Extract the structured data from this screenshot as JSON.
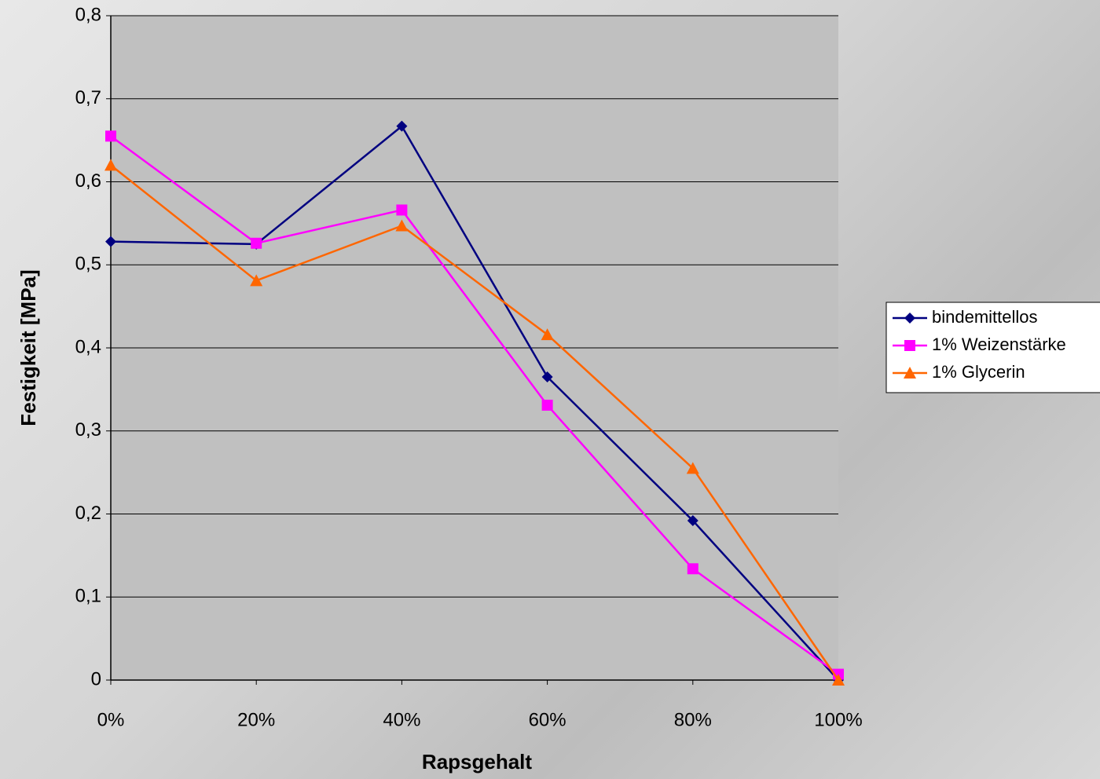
{
  "chart_data": {
    "type": "line",
    "x_label": "Rapsgehalt",
    "y_label": "Festigkeit [MPa]",
    "categories": [
      "0%",
      "20%",
      "40%",
      "60%",
      "80%",
      "100%"
    ],
    "series": [
      {
        "name": "bindemittellos",
        "color": "#000080",
        "marker": "diamond",
        "values": [
          0.528,
          0.525,
          0.667,
          0.365,
          0.192,
          0
        ]
      },
      {
        "name": "1% Weizenstärke",
        "color": "#ff00ff",
        "marker": "square",
        "values": [
          0.655,
          0.526,
          0.566,
          0.331,
          0.134,
          0.007
        ]
      },
      {
        "name": "1% Glycerin",
        "color": "#ff6600",
        "marker": "triangle",
        "values": [
          0.62,
          0.481,
          0.547,
          0.416,
          0.255,
          0
        ]
      }
    ],
    "ylim": [
      0,
      0.8
    ],
    "yticks": [
      0,
      {
        "value": 0.1,
        "label": "0,1"
      },
      {
        "value": 0.2,
        "label": "0,2"
      },
      {
        "value": 0.3,
        "label": "0,3"
      },
      {
        "value": 0.4,
        "label": "0,4"
      },
      {
        "value": 0.5,
        "label": "0,5"
      },
      {
        "value": 0.6,
        "label": "0,6"
      },
      {
        "value": 0.7,
        "label": "0,7"
      },
      {
        "value": 0.8,
        "label": "0,8"
      }
    ],
    "grid": true,
    "legend": "right"
  }
}
